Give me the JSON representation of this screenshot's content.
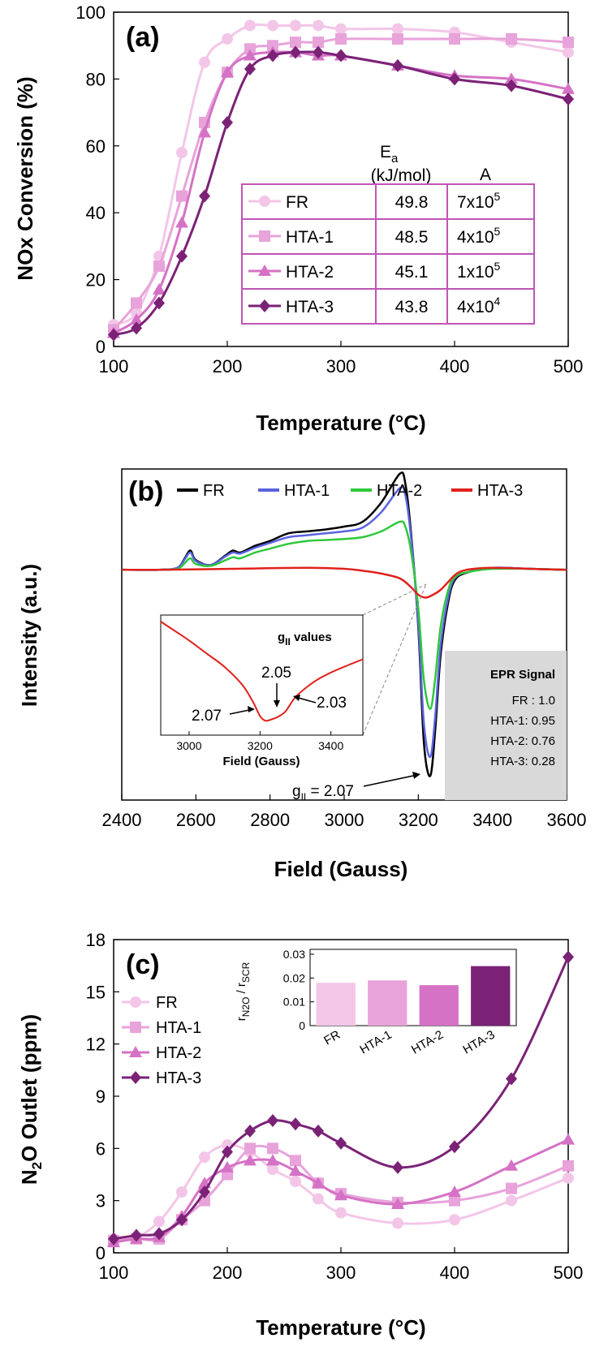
{
  "chart_data": [
    {
      "type": "line",
      "panel_label": "(a)",
      "xlabel": "Temperature (°C)",
      "ylabel": "NOx Conversion (%)",
      "xlim": [
        100,
        500
      ],
      "ylim": [
        0,
        100
      ],
      "xticks": [
        100,
        200,
        300,
        400,
        500
      ],
      "yticks": [
        0,
        20,
        40,
        60,
        80,
        100
      ],
      "series": [
        {
          "name": "FR",
          "color": "#f3c6e8",
          "marker": "circle",
          "x": [
            100,
            120,
            140,
            160,
            180,
            200,
            220,
            240,
            260,
            280,
            300,
            350,
            400,
            450,
            500
          ],
          "y": [
            6.5,
            10,
            27,
            58,
            85,
            92,
            96,
            96,
            96,
            96,
            95,
            95,
            94,
            91,
            88
          ]
        },
        {
          "name": "HTA-1",
          "color": "#e8a3da",
          "marker": "square",
          "x": [
            100,
            120,
            140,
            160,
            180,
            200,
            220,
            240,
            260,
            280,
            300,
            350,
            400,
            450,
            500
          ],
          "y": [
            5,
            13,
            24,
            45,
            67,
            82,
            89,
            90,
            91,
            91,
            92,
            92,
            92,
            92,
            91
          ]
        },
        {
          "name": "HTA-2",
          "color": "#d572c5",
          "marker": "triangle",
          "x": [
            100,
            120,
            140,
            160,
            180,
            200,
            220,
            240,
            260,
            280,
            300,
            350,
            400,
            450,
            500
          ],
          "y": [
            4,
            8,
            17,
            37,
            64,
            82,
            87,
            88,
            88,
            87,
            87,
            84,
            81,
            80,
            77
          ]
        },
        {
          "name": "HTA-3",
          "color": "#7b2277",
          "marker": "diamond",
          "x": [
            100,
            120,
            140,
            160,
            180,
            200,
            220,
            240,
            260,
            280,
            300,
            350,
            400,
            450,
            500
          ],
          "y": [
            3.5,
            5.5,
            13,
            27,
            45,
            67,
            83,
            87,
            88,
            88,
            87,
            84,
            80,
            78,
            74
          ]
        }
      ],
      "table": {
        "header_ea": "E",
        "header_ea_sub": "a",
        "header_units": "(kJ/mol)",
        "header_a": "A",
        "rows": [
          {
            "name": "FR",
            "ea": "49.8",
            "a_base": "7x10",
            "a_exp": "5"
          },
          {
            "name": "HTA-1",
            "ea": "48.5",
            "a_base": "4x10",
            "a_exp": "5"
          },
          {
            "name": "HTA-2",
            "ea": "45.1",
            "a_base": "1x10",
            "a_exp": "5"
          },
          {
            "name": "HTA-3",
            "ea": "43.8",
            "a_base": "4x10",
            "a_exp": "4"
          }
        ]
      }
    },
    {
      "type": "line",
      "panel_label": "(b)",
      "xlabel": "Field (Gauss)",
      "ylabel": "Intensity (a.u.)",
      "xlim": [
        2400,
        3600
      ],
      "ylim": [
        -2.4,
        1.05
      ],
      "xticks": [
        2400,
        2600,
        2800,
        3000,
        3200,
        3400,
        3600
      ],
      "legend": [
        {
          "name": "FR",
          "color": "#000000"
        },
        {
          "name": "HTA-1",
          "color": "#5a63e0"
        },
        {
          "name": "HTA-2",
          "color": "#2ec83a"
        },
        {
          "name": "HTA-3",
          "color": "#e0211c"
        }
      ],
      "series": [
        {
          "name": "FR",
          "color": "#000000",
          "x": [
            2500,
            2550,
            2570,
            2585,
            2600,
            2640,
            2680,
            2700,
            2720,
            2760,
            2800,
            2850,
            2900,
            2950,
            3000,
            3050,
            3100,
            3150,
            3165,
            3180,
            3200,
            3215,
            3232,
            3245,
            3260,
            3280,
            3300,
            3340,
            3400,
            3500,
            3600
          ],
          "y": [
            0,
            0.02,
            0.12,
            0.2,
            0.1,
            0.05,
            0.15,
            0.2,
            0.18,
            0.25,
            0.3,
            0.38,
            0.4,
            0.42,
            0.45,
            0.5,
            0.7,
            1.0,
            0.9,
            0.4,
            -0.6,
            -1.8,
            -2.15,
            -1.7,
            -0.9,
            -0.35,
            -0.1,
            -0.02,
            0.02,
            0.01,
            0
          ]
        },
        {
          "name": "HTA-1",
          "color": "#5a63e0",
          "x": [
            2500,
            2550,
            2570,
            2585,
            2600,
            2640,
            2680,
            2700,
            2720,
            2760,
            2800,
            2850,
            2900,
            2950,
            3000,
            3050,
            3100,
            3150,
            3165,
            3180,
            3200,
            3215,
            3232,
            3245,
            3260,
            3280,
            3300,
            3340,
            3400,
            3500,
            3600
          ],
          "y": [
            0,
            0.02,
            0.11,
            0.18,
            0.09,
            0.05,
            0.14,
            0.18,
            0.17,
            0.23,
            0.28,
            0.34,
            0.36,
            0.38,
            0.4,
            0.44,
            0.6,
            0.85,
            0.78,
            0.35,
            -0.55,
            -1.6,
            -1.95,
            -1.55,
            -0.8,
            -0.3,
            -0.08,
            -0.02,
            0.02,
            0.01,
            0
          ]
        },
        {
          "name": "HTA-2",
          "color": "#2ec83a",
          "x": [
            2500,
            2550,
            2570,
            2585,
            2600,
            2640,
            2680,
            2700,
            2720,
            2760,
            2800,
            2850,
            2900,
            2950,
            3000,
            3050,
            3100,
            3150,
            3165,
            3180,
            3200,
            3215,
            3232,
            3245,
            3260,
            3280,
            3300,
            3340,
            3400,
            3500,
            3600
          ],
          "y": [
            0,
            0.01,
            0.07,
            0.12,
            0.06,
            0.04,
            0.1,
            0.13,
            0.12,
            0.18,
            0.22,
            0.27,
            0.3,
            0.31,
            0.32,
            0.34,
            0.4,
            0.5,
            0.45,
            0.2,
            -0.4,
            -1.15,
            -1.45,
            -1.15,
            -0.6,
            -0.22,
            -0.07,
            -0.02,
            0.01,
            0.01,
            0
          ]
        },
        {
          "name": "HTA-3",
          "color": "#e0211c",
          "x": [
            2500,
            2700,
            2900,
            3000,
            3050,
            3100,
            3150,
            3180,
            3200,
            3220,
            3240,
            3260,
            3280,
            3300,
            3320,
            3350,
            3400,
            3500,
            3600
          ],
          "y": [
            0,
            0.01,
            0.02,
            0.01,
            -0.01,
            -0.04,
            -0.09,
            -0.18,
            -0.26,
            -0.29,
            -0.26,
            -0.21,
            -0.13,
            -0.05,
            -0.01,
            0.01,
            0.02,
            0.01,
            0
          ]
        }
      ],
      "annotation": {
        "g_label": "g",
        "g_sub": "II",
        "g_value": " = 2.07"
      },
      "inset": {
        "title": "g",
        "title_sub": "II",
        "title_suffix": " values",
        "xlabel": "Field (Gauss)",
        "xticks": [
          3000,
          3200,
          3400
        ],
        "xlim": [
          2920,
          3490
        ],
        "labels": [
          "2.07",
          "2.05",
          "2.03"
        ],
        "x": [
          2920,
          2960,
          3000,
          3050,
          3100,
          3150,
          3180,
          3200,
          3215,
          3230,
          3250,
          3270,
          3285,
          3300,
          3330,
          3360,
          3400,
          3450,
          3490
        ],
        "y": [
          1.0,
          0.9,
          0.8,
          0.66,
          0.52,
          0.33,
          0.15,
          0.0,
          -0.05,
          -0.04,
          -0.01,
          0.04,
          0.12,
          0.2,
          0.3,
          0.38,
          0.46,
          0.54,
          0.6
        ]
      },
      "signal_box": {
        "title": "EPR Signal",
        "rows": [
          "FR : 1.0",
          "HTA-1: 0.95",
          "HTA-2: 0.76",
          "HTA-3: 0.28"
        ],
        "color": "#d9d9d9"
      }
    },
    {
      "type": "line",
      "panel_label": "(c)",
      "xlabel": "Temperature (°C)",
      "ylabel": "N₂O Outlet (ppm)",
      "ylabel_main": "N",
      "ylabel_sub": "2",
      "ylabel_rest": "O Outlet (ppm)",
      "xlim": [
        100,
        500
      ],
      "ylim": [
        0,
        18
      ],
      "xticks": [
        100,
        200,
        300,
        400,
        500
      ],
      "yticks": [
        0,
        3,
        6,
        9,
        12,
        15,
        18
      ],
      "series": [
        {
          "name": "FR",
          "color": "#f3c6e8",
          "marker": "circle",
          "x": [
            100,
            120,
            140,
            160,
            180,
            200,
            220,
            240,
            260,
            280,
            300,
            350,
            400,
            450,
            500
          ],
          "y": [
            0.8,
            0.9,
            1.8,
            3.5,
            5.5,
            6.2,
            5.8,
            4.8,
            4.1,
            3.1,
            2.3,
            1.7,
            1.9,
            3.0,
            4.3
          ]
        },
        {
          "name": "HTA-1",
          "color": "#e8a3da",
          "marker": "square",
          "x": [
            100,
            120,
            140,
            160,
            180,
            200,
            220,
            240,
            260,
            280,
            300,
            350,
            400,
            450,
            500
          ],
          "y": [
            0.7,
            0.8,
            0.8,
            1.9,
            3.0,
            4.5,
            6.0,
            6.0,
            5.3,
            4.0,
            3.4,
            2.9,
            3.0,
            3.7,
            5.0
          ]
        },
        {
          "name": "HTA-2",
          "color": "#d572c5",
          "marker": "triangle",
          "x": [
            100,
            120,
            140,
            160,
            180,
            200,
            220,
            240,
            260,
            280,
            300,
            350,
            400,
            450,
            500
          ],
          "y": [
            0.6,
            0.8,
            0.9,
            2.1,
            4.0,
            4.9,
            5.3,
            5.3,
            4.7,
            4.0,
            3.3,
            2.8,
            3.5,
            5.0,
            6.5
          ]
        },
        {
          "name": "HTA-3",
          "color": "#7b2277",
          "marker": "diamond",
          "x": [
            100,
            120,
            140,
            160,
            180,
            200,
            220,
            240,
            260,
            280,
            300,
            350,
            400,
            450,
            500
          ],
          "y": [
            0.8,
            1.0,
            1.1,
            1.9,
            3.5,
            5.8,
            7.0,
            7.6,
            7.4,
            7.0,
            6.3,
            4.9,
            6.1,
            10.0,
            17.0
          ]
        }
      ],
      "inset": {
        "type": "bar",
        "ylabel_r": "r",
        "ylabel_sub1": "N2O",
        "ylabel_slash": " / r",
        "ylabel_sub2": "SCR",
        "ylim": [
          0,
          0.03
        ],
        "yticks": [
          "0",
          "0.01",
          "0.02",
          "0.03"
        ],
        "categories": [
          "FR",
          "HTA-1",
          "HTA-2",
          "HTA-3"
        ],
        "values": [
          0.018,
          0.019,
          0.017,
          0.025
        ],
        "colors": [
          "#f3c6e8",
          "#e8a3da",
          "#d572c5",
          "#7b2277"
        ]
      }
    }
  ]
}
